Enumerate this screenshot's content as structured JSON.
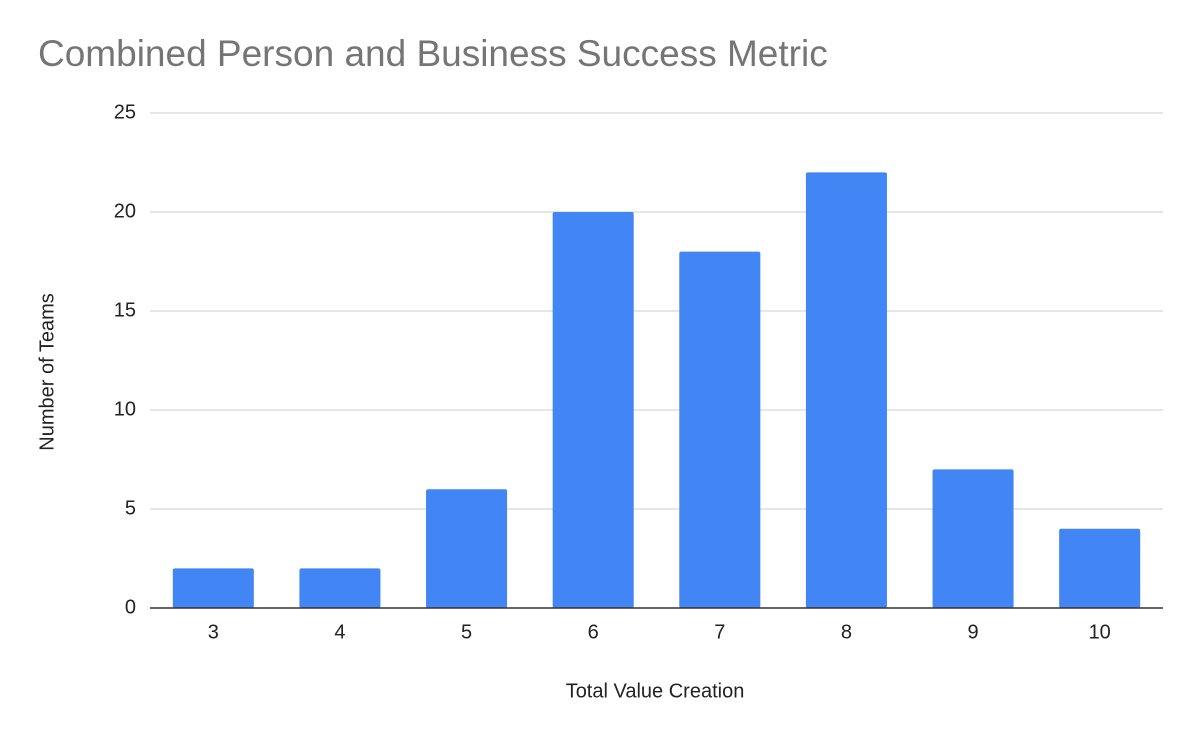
{
  "chart_data": {
    "type": "bar",
    "title": "Combined Person and Business Success Metric",
    "x_label": "Total Value Creation",
    "y_label": "Number of Teams",
    "categories": [
      "3",
      "4",
      "5",
      "6",
      "7",
      "8",
      "9",
      "10"
    ],
    "values": [
      2,
      2,
      6,
      20,
      18,
      22,
      7,
      4
    ],
    "color": "#4285f4",
    "ylim": [
      0,
      25
    ],
    "yticks": [
      0,
      5,
      10,
      15,
      20,
      25
    ],
    "grid": true
  }
}
